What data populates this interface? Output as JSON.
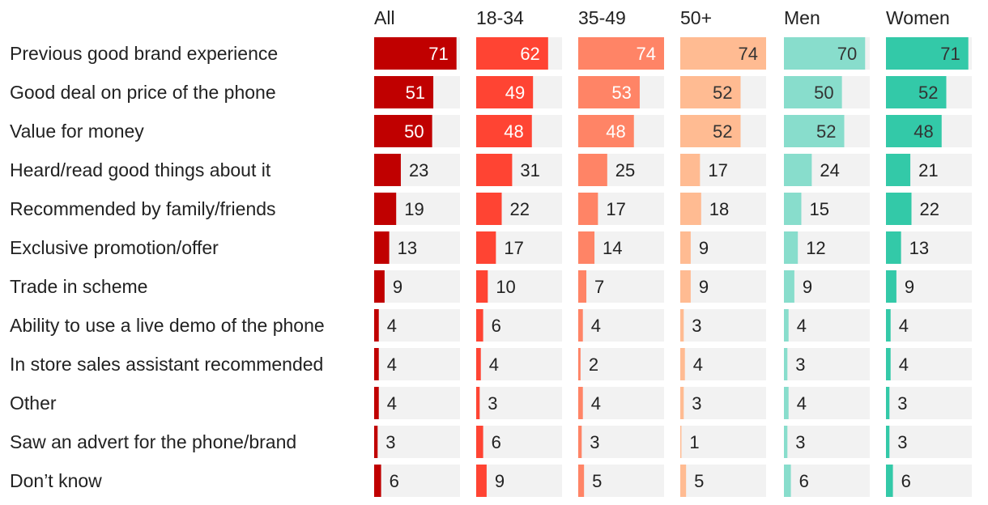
{
  "chart_data": {
    "type": "bar",
    "orientation": "horizontal",
    "layout": "small-multiples",
    "xlim": [
      0,
      100
    ],
    "categories": [
      "Previous good brand experience",
      "Good deal on price of the phone",
      "Value for money",
      "Heard/read good things about it",
      "Recommended by family/friends",
      "Exclusive promotion/offer",
      "Trade in scheme",
      "Ability to use a live demo of the phone",
      "In store sales assistant recommended",
      "Other",
      "Saw an advert for the phone/brand",
      "Don’t know"
    ],
    "series": [
      {
        "name": "All",
        "color": "#c00000",
        "values": [
          71,
          51,
          50,
          23,
          19,
          13,
          9,
          4,
          4,
          4,
          3,
          6
        ]
      },
      {
        "name": "18-34",
        "color": "#ff4433",
        "values": [
          62,
          49,
          48,
          31,
          22,
          17,
          10,
          6,
          4,
          3,
          6,
          9
        ]
      },
      {
        "name": "35-49",
        "color": "#ff8466",
        "values": [
          74,
          53,
          48,
          25,
          17,
          14,
          7,
          4,
          2,
          4,
          3,
          5
        ]
      },
      {
        "name": "50+",
        "color": "#ffbb92",
        "values": [
          74,
          52,
          52,
          17,
          18,
          9,
          9,
          3,
          4,
          3,
          1,
          5
        ]
      },
      {
        "name": "Men",
        "color": "#88ddcc",
        "values": [
          70,
          50,
          52,
          24,
          15,
          12,
          9,
          4,
          3,
          4,
          3,
          6
        ]
      },
      {
        "name": "Women",
        "color": "#33c9a8",
        "values": [
          71,
          52,
          48,
          21,
          22,
          13,
          9,
          4,
          4,
          3,
          3,
          6
        ]
      }
    ],
    "background_track_color": "#f2f2f2",
    "label_inside_color": {
      "All": "#ffffff",
      "18-34": "#ffffff",
      "35-49": "#ffffff",
      "50+": "#333333",
      "Men": "#333333",
      "Women": "#333333"
    },
    "label_outside_color": "#222222"
  }
}
